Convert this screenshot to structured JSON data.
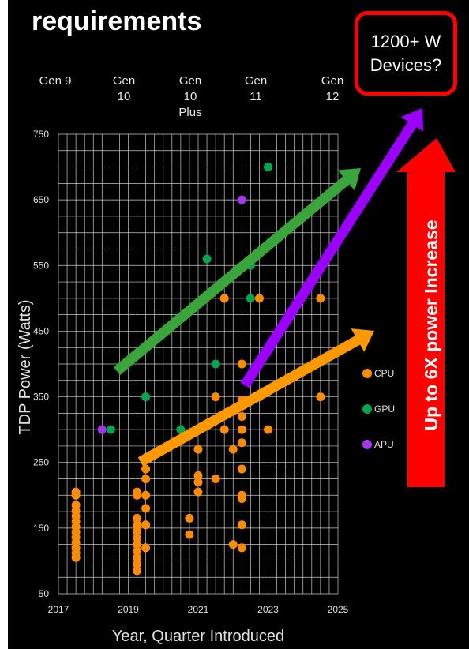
{
  "title": "requirements",
  "generations": [
    {
      "lines": [
        "Gen 9"
      ]
    },
    {
      "lines": [
        "Gen",
        "10"
      ]
    },
    {
      "lines": [
        "Gen",
        "10",
        "Plus"
      ]
    },
    {
      "lines": [
        "Gen",
        "11"
      ]
    },
    {
      "lines": [
        "Gen",
        "12"
      ]
    }
  ],
  "callout": {
    "line1": "1200+ W",
    "line2": "Devices?"
  },
  "increase_label": "Up to 6X power Increase",
  "colors": {
    "cpu": "#ff8c00",
    "gpu": "#00a550",
    "apu": "#a335ee",
    "trend_gpu": "#3aa53a",
    "trend_apu": "#9b00ff",
    "trend_cpu": "#ff9900",
    "increase": "#ff0000"
  },
  "chart_data": {
    "type": "scatter",
    "xlabel": "Year, Quarter Introduced",
    "ylabel": "TDP Power (Watts)",
    "xlim": [
      2017,
      2025
    ],
    "ylim": [
      50,
      750
    ],
    "x_ticks": [
      "2017",
      "2019",
      "2021",
      "2023",
      "2025"
    ],
    "y_ticks": [
      "50",
      "150",
      "250",
      "350",
      "450",
      "550",
      "650",
      "750"
    ],
    "grid": true,
    "legend_position": "right",
    "series": [
      {
        "name": "CPU",
        "color": "#ff8c00",
        "points": [
          [
            2017.5,
            105
          ],
          [
            2017.5,
            112
          ],
          [
            2017.5,
            120
          ],
          [
            2017.5,
            128
          ],
          [
            2017.5,
            136
          ],
          [
            2017.5,
            144
          ],
          [
            2017.5,
            152
          ],
          [
            2017.5,
            160
          ],
          [
            2017.5,
            168
          ],
          [
            2017.5,
            176
          ],
          [
            2017.5,
            185
          ],
          [
            2017.5,
            200
          ],
          [
            2017.5,
            205
          ],
          [
            2019.25,
            85
          ],
          [
            2019.25,
            95
          ],
          [
            2019.25,
            105
          ],
          [
            2019.25,
            115
          ],
          [
            2019.25,
            125
          ],
          [
            2019.25,
            135
          ],
          [
            2019.25,
            145
          ],
          [
            2019.25,
            155
          ],
          [
            2019.25,
            165
          ],
          [
            2019.25,
            200
          ],
          [
            2019.25,
            205
          ],
          [
            2019.5,
            120
          ],
          [
            2019.5,
            155
          ],
          [
            2019.5,
            180
          ],
          [
            2019.5,
            200
          ],
          [
            2019.5,
            225
          ],
          [
            2019.5,
            240
          ],
          [
            2020.75,
            140
          ],
          [
            2020.75,
            165
          ],
          [
            2021,
            205
          ],
          [
            2021,
            220
          ],
          [
            2021,
            230
          ],
          [
            2021,
            270
          ],
          [
            2021.5,
            225
          ],
          [
            2021.5,
            350
          ],
          [
            2021.75,
            300
          ],
          [
            2021.75,
            500
          ],
          [
            2022,
            125
          ],
          [
            2022,
            270
          ],
          [
            2022.25,
            120
          ],
          [
            2022.25,
            155
          ],
          [
            2022.25,
            195
          ],
          [
            2022.25,
            200
          ],
          [
            2022.25,
            240
          ],
          [
            2022.25,
            280
          ],
          [
            2022.25,
            300
          ],
          [
            2022.25,
            320
          ],
          [
            2022.25,
            345
          ],
          [
            2022.25,
            400
          ],
          [
            2022.75,
            350
          ],
          [
            2022.75,
            500
          ],
          [
            2023,
            300
          ],
          [
            2024.5,
            350
          ],
          [
            2024.5,
            500
          ]
        ]
      },
      {
        "name": "GPU",
        "color": "#00a550",
        "points": [
          [
            2018.5,
            300
          ],
          [
            2019.5,
            350
          ],
          [
            2020.5,
            300
          ],
          [
            2021.25,
            560
          ],
          [
            2021.5,
            400
          ],
          [
            2022.5,
            550
          ],
          [
            2022.5,
            500
          ],
          [
            2023,
            700
          ]
        ]
      },
      {
        "name": "APU",
        "color": "#a335ee",
        "points": [
          [
            2018.25,
            300
          ],
          [
            2022.25,
            650
          ]
        ]
      }
    ]
  }
}
